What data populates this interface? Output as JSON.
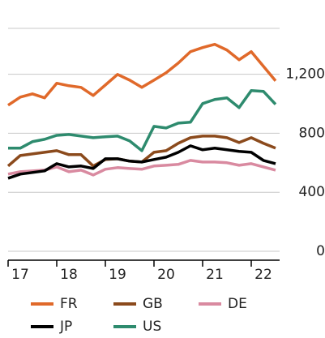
{
  "chart_data": {
    "type": "line",
    "x": [
      17,
      17.25,
      17.5,
      17.75,
      18,
      18.25,
      18.5,
      18.75,
      19,
      19.25,
      19.5,
      19.75,
      20,
      20.25,
      20.5,
      20.75,
      21,
      21.25,
      21.5,
      21.75,
      22,
      22.25,
      22.5
    ],
    "xlim": [
      17,
      22.5
    ],
    "xticks": [
      {
        "value": 17.25,
        "label": "17"
      },
      {
        "value": 18.25,
        "label": "18"
      },
      {
        "value": 19.25,
        "label": "19"
      },
      {
        "value": 20.25,
        "label": "20"
      },
      {
        "value": 21.25,
        "label": "21"
      },
      {
        "value": 22.25,
        "label": "22"
      }
    ],
    "ylim": [
      0,
      1500
    ],
    "yticks": [
      0,
      400,
      800,
      {
        "value": 1200,
        "label": "1,200"
      }
    ],
    "grid": true,
    "series": [
      {
        "name": "FR",
        "color": "#e0692a",
        "values": [
          990,
          1045,
          1067,
          1040,
          1139,
          1122,
          1111,
          1056,
          1127,
          1199,
          1160,
          1111,
          1160,
          1210,
          1276,
          1353,
          1381,
          1403,
          1364,
          1298,
          1353,
          1254,
          1155
        ]
      },
      {
        "name": "GB",
        "color": "#8b4a1c",
        "values": [
          578,
          649,
          660,
          671,
          682,
          655,
          655,
          578,
          622,
          627,
          611,
          605,
          671,
          682,
          732,
          770,
          781,
          781,
          770,
          737,
          770,
          732,
          699
        ]
      },
      {
        "name": "DE",
        "color": "#d98aa0",
        "values": [
          523,
          539,
          545,
          550,
          572,
          539,
          550,
          517,
          556,
          567,
          561,
          556,
          578,
          583,
          589,
          616,
          605,
          605,
          600,
          583,
          594,
          572,
          550
        ]
      },
      {
        "name": "JP",
        "color": "#000000",
        "values": [
          495,
          523,
          534,
          545,
          594,
          572,
          578,
          561,
          627,
          627,
          611,
          605,
          622,
          638,
          671,
          715,
          688,
          699,
          688,
          677,
          671,
          616,
          594
        ]
      },
      {
        "name": "US",
        "color": "#2e8b6e",
        "values": [
          699,
          699,
          743,
          759,
          786,
          792,
          781,
          770,
          776,
          781,
          748,
          682,
          847,
          836,
          869,
          875,
          1001,
          1029,
          1040,
          974,
          1089,
          1084,
          996
        ]
      }
    ]
  }
}
